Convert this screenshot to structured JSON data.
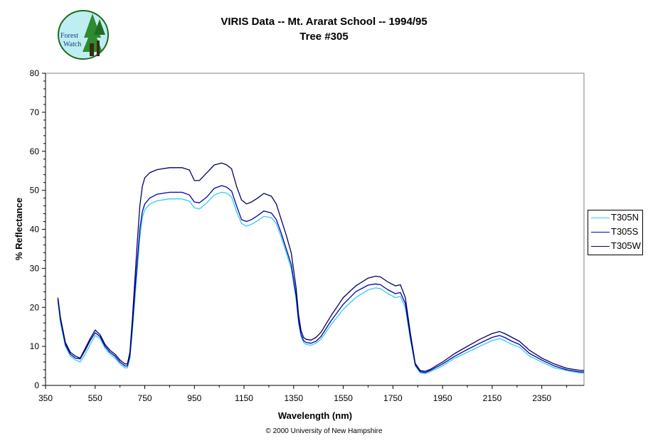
{
  "header": {
    "title_line1": "VIRIS Data -- Mt. Ararat School -- 1994/95",
    "title_line2": "Tree #305"
  },
  "logo": {
    "text_line1": "Forest",
    "text_line2": "Watch"
  },
  "footer": {
    "copyright": "© 2000 University of New Hampshire"
  },
  "chart_data": {
    "type": "line",
    "title": "VIRIS Data -- Mt. Ararat School -- 1994/95",
    "subtitle": "Tree #305",
    "xlabel": "Wavelength (nm)",
    "ylabel": "% Reflectance",
    "xlim": [
      350,
      2520
    ],
    "ylim": [
      0,
      80
    ],
    "x_ticks": [
      350,
      550,
      750,
      950,
      1150,
      1350,
      1550,
      1750,
      1950,
      2150,
      2350
    ],
    "y_ticks": [
      0,
      10,
      20,
      30,
      40,
      50,
      60,
      70,
      80
    ],
    "x_tick_labels": [
      "350",
      "550",
      "750",
      "950",
      "1150",
      "1350",
      "1550",
      "1750",
      "1950",
      "2150",
      "2350"
    ],
    "y_tick_labels": [
      "0",
      "10",
      "20",
      "30",
      "40",
      "50",
      "60",
      "70",
      "80"
    ],
    "grid": false,
    "legend_position": "right",
    "x": [
      400,
      410,
      430,
      450,
      470,
      490,
      510,
      530,
      550,
      570,
      590,
      610,
      630,
      650,
      670,
      680,
      690,
      700,
      710,
      720,
      730,
      740,
      750,
      770,
      800,
      850,
      900,
      930,
      950,
      970,
      1000,
      1030,
      1060,
      1080,
      1100,
      1120,
      1140,
      1160,
      1180,
      1200,
      1230,
      1260,
      1280,
      1300,
      1320,
      1340,
      1360,
      1370,
      1380,
      1390,
      1400,
      1420,
      1440,
      1460,
      1500,
      1550,
      1600,
      1650,
      1680,
      1700,
      1730,
      1760,
      1780,
      1800,
      1820,
      1840,
      1860,
      1880,
      1900,
      1950,
      2000,
      2050,
      2100,
      2150,
      2180,
      2200,
      2230,
      2260,
      2300,
      2350,
      2400,
      2450,
      2500,
      2520
    ],
    "series": [
      {
        "name": "T305N",
        "color": "#33ccee",
        "values": [
          21.5,
          16,
          10,
          7.5,
          6.5,
          6,
          8,
          10.5,
          12.8,
          12,
          9.5,
          8,
          7,
          5.5,
          4.5,
          4.5,
          7,
          14,
          22,
          30,
          38,
          43,
          45,
          46.5,
          47.3,
          47.8,
          47.8,
          47.2,
          45.5,
          45.2,
          46.8,
          48.8,
          49.5,
          49.3,
          48.3,
          44.5,
          41.5,
          40.8,
          41.3,
          42,
          43.3,
          43,
          41.5,
          38,
          34,
          30,
          22,
          16,
          12.5,
          11,
          10.5,
          10.3,
          10.8,
          11.8,
          15.5,
          19.5,
          22.5,
          24.5,
          25,
          24.8,
          23.5,
          22.5,
          22.8,
          20,
          12,
          5,
          3.2,
          3,
          3.5,
          5,
          7,
          8.5,
          10,
          11.5,
          12,
          11.5,
          10.5,
          9.8,
          7.5,
          6,
          4.5,
          3.8,
          3.2,
          3.1
        ]
      },
      {
        "name": "T305S",
        "color": "#0000aa",
        "values": [
          22,
          17,
          10.5,
          8,
          7,
          6.8,
          9,
          11.5,
          13.5,
          12.5,
          10,
          8.5,
          7.5,
          6,
          5,
          5,
          7.5,
          15,
          24,
          32,
          40,
          44.5,
          46.5,
          48,
          49,
          49.5,
          49.5,
          48.8,
          47,
          46.8,
          48.3,
          50.5,
          51.2,
          50.8,
          49.8,
          46,
          42.5,
          42,
          42.5,
          43.3,
          44.7,
          44.2,
          42.5,
          39,
          35,
          31,
          23,
          16.5,
          13,
          11.5,
          11,
          10.8,
          11.3,
          12.5,
          16.5,
          20.8,
          24,
          25.7,
          26,
          25.8,
          24.5,
          23.5,
          23.8,
          21,
          12.5,
          5.3,
          3.5,
          3.3,
          3.8,
          5.5,
          7.5,
          9.2,
          10.8,
          12.3,
          12.8,
          12.3,
          11.3,
          10.5,
          8.2,
          6.5,
          5,
          4,
          3.5,
          3.4
        ]
      },
      {
        "name": "T305W",
        "color": "#000066",
        "values": [
          22.5,
          17.5,
          11,
          8.5,
          7.5,
          7,
          9.5,
          12,
          14.2,
          13,
          10.5,
          9,
          8,
          6.5,
          5.5,
          5.5,
          8.5,
          17,
          27,
          37,
          46,
          51,
          53.2,
          54.5,
          55.3,
          55.8,
          55.8,
          55.2,
          52.5,
          52.5,
          54.5,
          56.5,
          57,
          56.5,
          55.5,
          51,
          47.5,
          46.5,
          47,
          47.8,
          49.2,
          48.5,
          46.5,
          42.5,
          38.5,
          34,
          25,
          18,
          14,
          12.3,
          11.8,
          11.6,
          12.3,
          13.6,
          17.8,
          22.5,
          25.5,
          27.5,
          28,
          27.8,
          26.5,
          25.5,
          25.8,
          22.5,
          13.5,
          5.6,
          3.8,
          3.6,
          4.1,
          6,
          8.2,
          10,
          11.8,
          13.3,
          13.8,
          13.3,
          12.3,
          11.3,
          9,
          7,
          5.5,
          4.4,
          3.9,
          3.8
        ]
      }
    ]
  }
}
